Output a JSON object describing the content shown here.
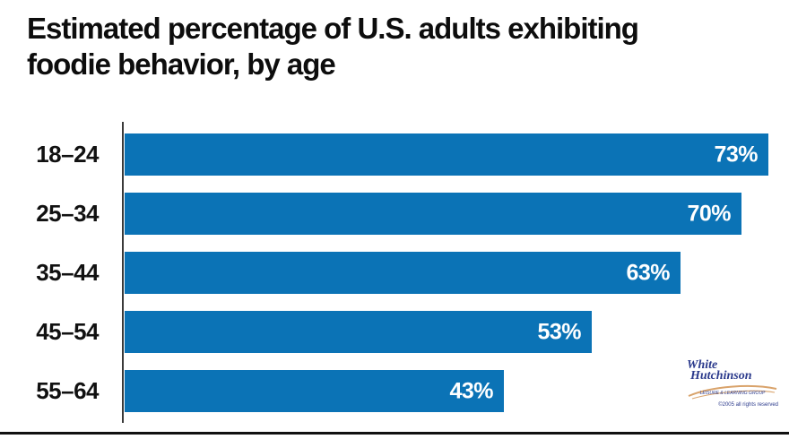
{
  "title": {
    "line1": "Estimated percentage of U.S. adults exhibiting",
    "line2": "foodie behavior, by age"
  },
  "chart_data": {
    "type": "bar",
    "orientation": "horizontal",
    "title": "Estimated percentage of U.S. adults exhibiting foodie behavior, by age",
    "categories": [
      "18–24",
      "25–34",
      "35–44",
      "45–54",
      "55–64"
    ],
    "values": [
      73,
      70,
      63,
      53,
      43
    ],
    "value_labels": [
      "73%",
      "70%",
      "63%",
      "53%",
      "43%"
    ],
    "unit": "%",
    "xlim": [
      0,
      75
    ],
    "grid": false,
    "legend": false,
    "bar_color": "#0b73b6",
    "value_label_color": "#ffffff",
    "category_label_color": "#111111",
    "axis_color": "#3a3a3a"
  },
  "logo": {
    "name_line1": "White",
    "name_line2": "Hutchinson",
    "tagline": "LEISURE & LEARNING GROUP",
    "copyright": "©2005 all rights reserved",
    "text_color": "#2b3a8c",
    "swoosh_color": "#d9a36b"
  }
}
